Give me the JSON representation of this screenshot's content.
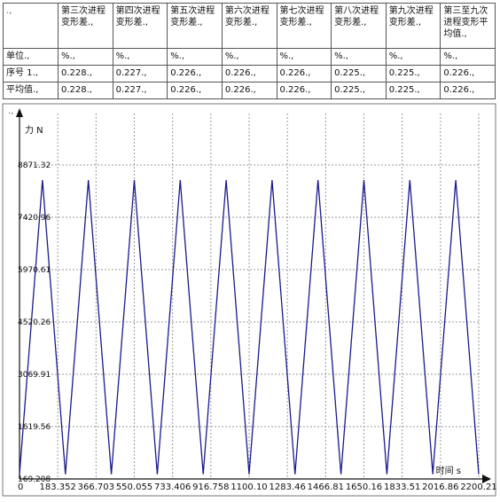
{
  "table": {
    "corner": ".,",
    "headers": [
      "第三次进程变形差.,",
      "第四次进程变形差.,",
      "第五次进程变形差.,",
      "第六次进程变形差.,",
      "第七次进程变形差.,",
      "第八次进程变形差.,",
      "第九次进程变形差.,",
      "第三至九次进程变形平均值.,"
    ],
    "rows": [
      {
        "label": "单位.,",
        "cells": [
          "%.,",
          "%.,",
          "%.,",
          "%.,",
          "%.,",
          "%.,",
          "%.,",
          "%.,"
        ]
      },
      {
        "label": "序号 1.,",
        "cells": [
          "0.228.,",
          "0.227.,",
          "0.226.,",
          "0.226.,",
          "0.226.,",
          "0.225.,",
          "0.225.,",
          "0.226.,"
        ]
      },
      {
        "label": "平均值.,",
        "cells": [
          "0.228.,",
          "0.227.,",
          "0.226.,",
          "0.226.,",
          "0.226.,",
          "0.225.,",
          "0.225.,",
          "0.226.,"
        ]
      }
    ]
  },
  "chart_data": {
    "type": "line",
    "corner_mark": ".,",
    "ylabel": "力 N",
    "xlabel": "时间 s",
    "y_ticks": [
      "169.208",
      "1619.56",
      "3069.91",
      "4520.26",
      "5970.61",
      "7420.96",
      "8871.32"
    ],
    "x_ticks": [
      "0",
      "183.352",
      "366.703",
      "550.055",
      "733.406",
      "916.758",
      "1100.10",
      "1283.46",
      "1466.81",
      "1650.16",
      "1833.51",
      "2016.86",
      "2200.21"
    ],
    "xlim": [
      0,
      2200.21
    ],
    "ylim": [
      169.208,
      8871.32
    ],
    "grid": true,
    "line_color": "#1a1a8c",
    "series": [
      {
        "x": [
          0,
          110,
          220,
          330,
          440,
          550,
          660,
          770,
          880,
          990,
          1100,
          1210,
          1320,
          1430,
          1540,
          1650,
          1760,
          1870,
          1980,
          2090,
          2200
        ],
        "y": [
          300,
          8450,
          300,
          8450,
          300,
          8450,
          300,
          8450,
          300,
          8450,
          300,
          8450,
          300,
          8450,
          300,
          8450,
          300,
          8450,
          300,
          8450,
          300
        ]
      }
    ]
  }
}
